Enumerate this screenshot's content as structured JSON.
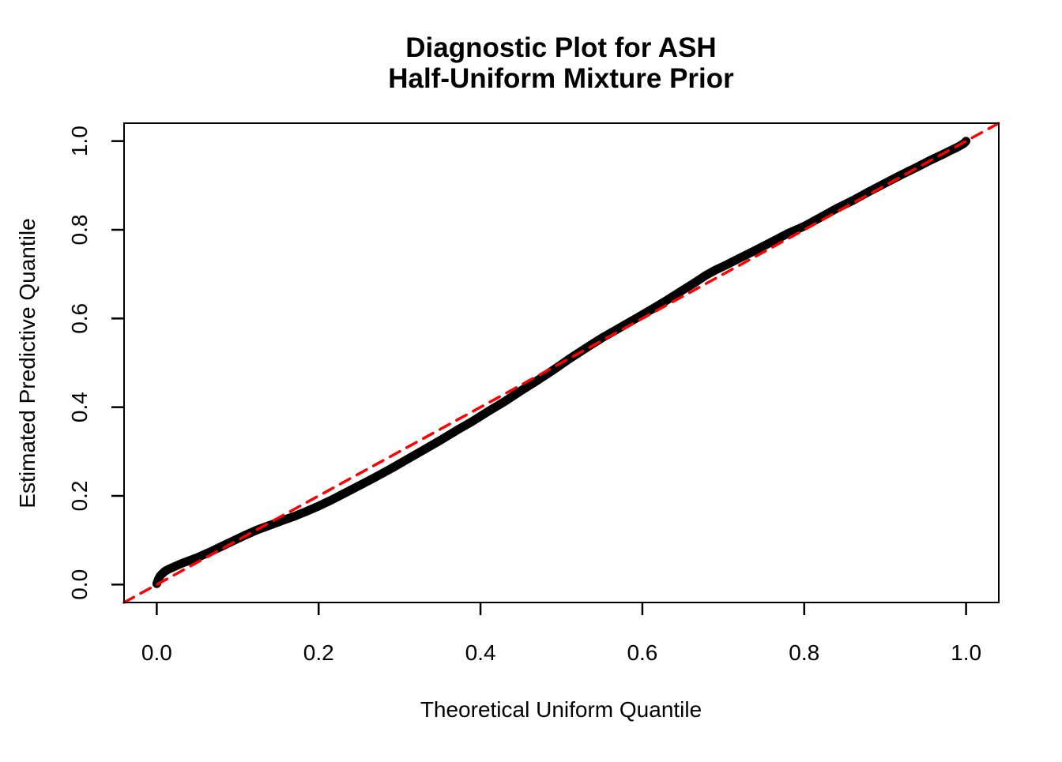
{
  "figure": {
    "title_line1": "Diagnostic Plot for ASH",
    "title_line2": "Half-Uniform Mixture Prior",
    "background_color": "#ffffff",
    "accent_color": "#ff0000",
    "curve_color": "#000000"
  },
  "chart_data": {
    "type": "line",
    "title": "Diagnostic Plot for ASH\nHalf-Uniform Mixture Prior",
    "xlabel": "Theoretical Uniform Quantile",
    "ylabel": "Estimated Predictive Quantile",
    "xlim": [
      -0.0404,
      1.0404
    ],
    "ylim": [
      -0.0404,
      1.0404
    ],
    "grid": false,
    "legend": "none",
    "x_ticks": [
      0.0,
      0.2,
      0.4,
      0.6,
      0.8,
      1.0
    ],
    "x_tick_labels": [
      "0.0",
      "0.2",
      "0.4",
      "0.6",
      "0.8",
      "1.0"
    ],
    "y_ticks": [
      0.0,
      0.2,
      0.4,
      0.6,
      0.8,
      1.0
    ],
    "y_tick_labels": [
      "0.0",
      "0.2",
      "0.4",
      "0.6",
      "0.8",
      "1.0"
    ],
    "series": [
      {
        "name": "estimated-predictive-quantiles",
        "color": "#000000",
        "style": "solid",
        "stroke_width": 11,
        "points": [
          [
            0.0,
            0.002
          ],
          [
            0.002,
            0.012
          ],
          [
            0.004,
            0.019
          ],
          [
            0.007,
            0.025
          ],
          [
            0.01,
            0.03
          ],
          [
            0.015,
            0.035
          ],
          [
            0.02,
            0.039
          ],
          [
            0.03,
            0.047
          ],
          [
            0.04,
            0.054
          ],
          [
            0.05,
            0.061
          ],
          [
            0.065,
            0.073
          ],
          [
            0.08,
            0.086
          ],
          [
            0.095,
            0.099
          ],
          [
            0.11,
            0.112
          ],
          [
            0.125,
            0.124
          ],
          [
            0.14,
            0.134
          ],
          [
            0.155,
            0.144
          ],
          [
            0.17,
            0.154
          ],
          [
            0.185,
            0.165
          ],
          [
            0.2,
            0.177
          ],
          [
            0.215,
            0.19
          ],
          [
            0.23,
            0.204
          ],
          [
            0.25,
            0.223
          ],
          [
            0.27,
            0.242
          ],
          [
            0.29,
            0.262
          ],
          [
            0.31,
            0.283
          ],
          [
            0.33,
            0.304
          ],
          [
            0.35,
            0.325
          ],
          [
            0.37,
            0.347
          ],
          [
            0.39,
            0.368
          ],
          [
            0.41,
            0.391
          ],
          [
            0.43,
            0.413
          ],
          [
            0.45,
            0.437
          ],
          [
            0.47,
            0.46
          ],
          [
            0.49,
            0.484
          ],
          [
            0.51,
            0.509
          ],
          [
            0.53,
            0.533
          ],
          [
            0.55,
            0.556
          ],
          [
            0.57,
            0.577
          ],
          [
            0.59,
            0.598
          ],
          [
            0.61,
            0.619
          ],
          [
            0.63,
            0.641
          ],
          [
            0.65,
            0.664
          ],
          [
            0.665,
            0.681
          ],
          [
            0.678,
            0.697
          ],
          [
            0.69,
            0.709
          ],
          [
            0.705,
            0.722
          ],
          [
            0.72,
            0.736
          ],
          [
            0.74,
            0.754
          ],
          [
            0.76,
            0.773
          ],
          [
            0.78,
            0.792
          ],
          [
            0.8,
            0.808
          ],
          [
            0.82,
            0.828
          ],
          [
            0.84,
            0.848
          ],
          [
            0.86,
            0.866
          ],
          [
            0.88,
            0.886
          ],
          [
            0.9,
            0.905
          ],
          [
            0.92,
            0.924
          ],
          [
            0.94,
            0.942
          ],
          [
            0.955,
            0.956
          ],
          [
            0.97,
            0.969
          ],
          [
            0.98,
            0.978
          ],
          [
            0.988,
            0.985
          ],
          [
            0.994,
            0.991
          ],
          [
            0.998,
            0.996
          ],
          [
            1.0,
            1.0
          ]
        ]
      },
      {
        "name": "reference-diagonal",
        "color": "#ff0000",
        "style": "dashed",
        "stroke_width": 3.5,
        "points": [
          [
            -0.0404,
            -0.0404
          ],
          [
            1.0404,
            1.0404
          ]
        ]
      }
    ]
  }
}
